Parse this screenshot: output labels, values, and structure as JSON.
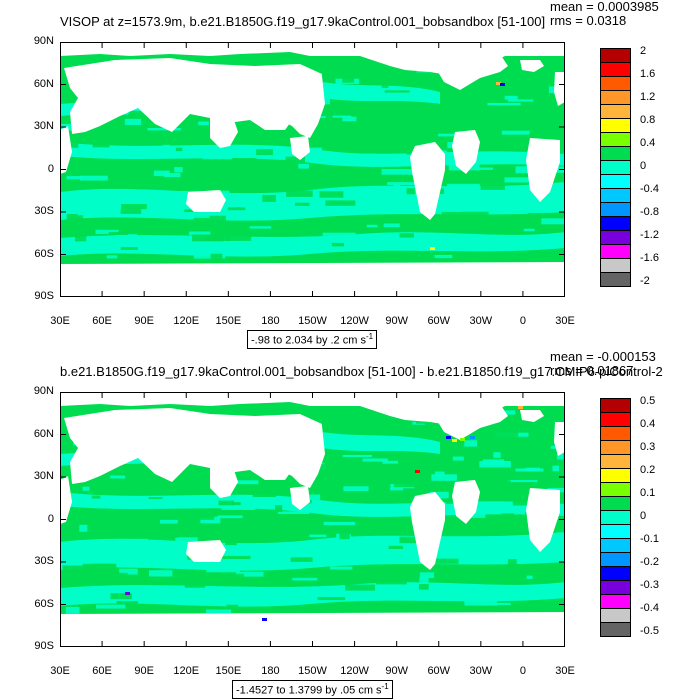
{
  "chart_data": [
    {
      "type": "heatmap",
      "title": "VISOP at z=1573.9m, b.e21.B1850G.f19_g17.9kaControl.001_bobsandbox [51-100]",
      "stats": {
        "mean_label": "mean = 0.0003985",
        "rms_label": "rms = 0.0318"
      },
      "y_ticks": [
        "90N",
        "60N",
        "30N",
        "0",
        "30S",
        "60S",
        "90S"
      ],
      "x_ticks": [
        "30E",
        "60E",
        "90E",
        "120E",
        "150E",
        "180",
        "150W",
        "120W",
        "90W",
        "60W",
        "30W",
        "0",
        "30E"
      ],
      "colorbar": {
        "labels": [
          "2",
          "1.6",
          "1.2",
          "0.8",
          "0.4",
          "0",
          "-0.4",
          "-0.8",
          "-1.2",
          "-1.6",
          "-2"
        ],
        "colors": [
          "#b40000",
          "#ff0000",
          "#ff5a00",
          "#ff9628",
          "#ffb43c",
          "#ffff00",
          "#78ff00",
          "#00dc50",
          "#00ffc8",
          "#00ffff",
          "#00c8ff",
          "#0096ff",
          "#0000ff",
          "#7800dc",
          "#ff00ff",
          "#c8c8c8",
          "#646464"
        ]
      },
      "range_text": "-.98 to 2.034 by .2 cm s",
      "range_unit_sup": "-1"
    },
    {
      "type": "heatmap",
      "title": "b.e21.B1850G.f19_g17.9kaControl.001_bobsandbox [51-100] - b.e21.B1850.f19_g17.CMIP6-piControl-2",
      "stats": {
        "mean_label": "mean = -0.000153",
        "rms_label": "rms = 0.01867"
      },
      "y_ticks": [
        "90N",
        "60N",
        "30N",
        "0",
        "30S",
        "60S",
        "90S"
      ],
      "x_ticks": [
        "30E",
        "60E",
        "90E",
        "120E",
        "150E",
        "180",
        "150W",
        "120W",
        "90W",
        "60W",
        "30W",
        "0",
        "30E"
      ],
      "colorbar": {
        "labels": [
          "0.5",
          "0.4",
          "0.3",
          "0.2",
          "0.1",
          "0",
          "-0.1",
          "-0.2",
          "-0.3",
          "-0.4",
          "-0.5"
        ],
        "colors": [
          "#b40000",
          "#ff0000",
          "#ff5a00",
          "#ff9628",
          "#ffb43c",
          "#ffff00",
          "#78ff00",
          "#00dc50",
          "#00ffc8",
          "#00ffff",
          "#00c8ff",
          "#0096ff",
          "#0000ff",
          "#7800dc",
          "#ff00ff",
          "#c8c8c8",
          "#646464"
        ]
      },
      "range_text": "-1.4527 to 1.3799 by .05 cm s",
      "range_unit_sup": "-1"
    }
  ]
}
